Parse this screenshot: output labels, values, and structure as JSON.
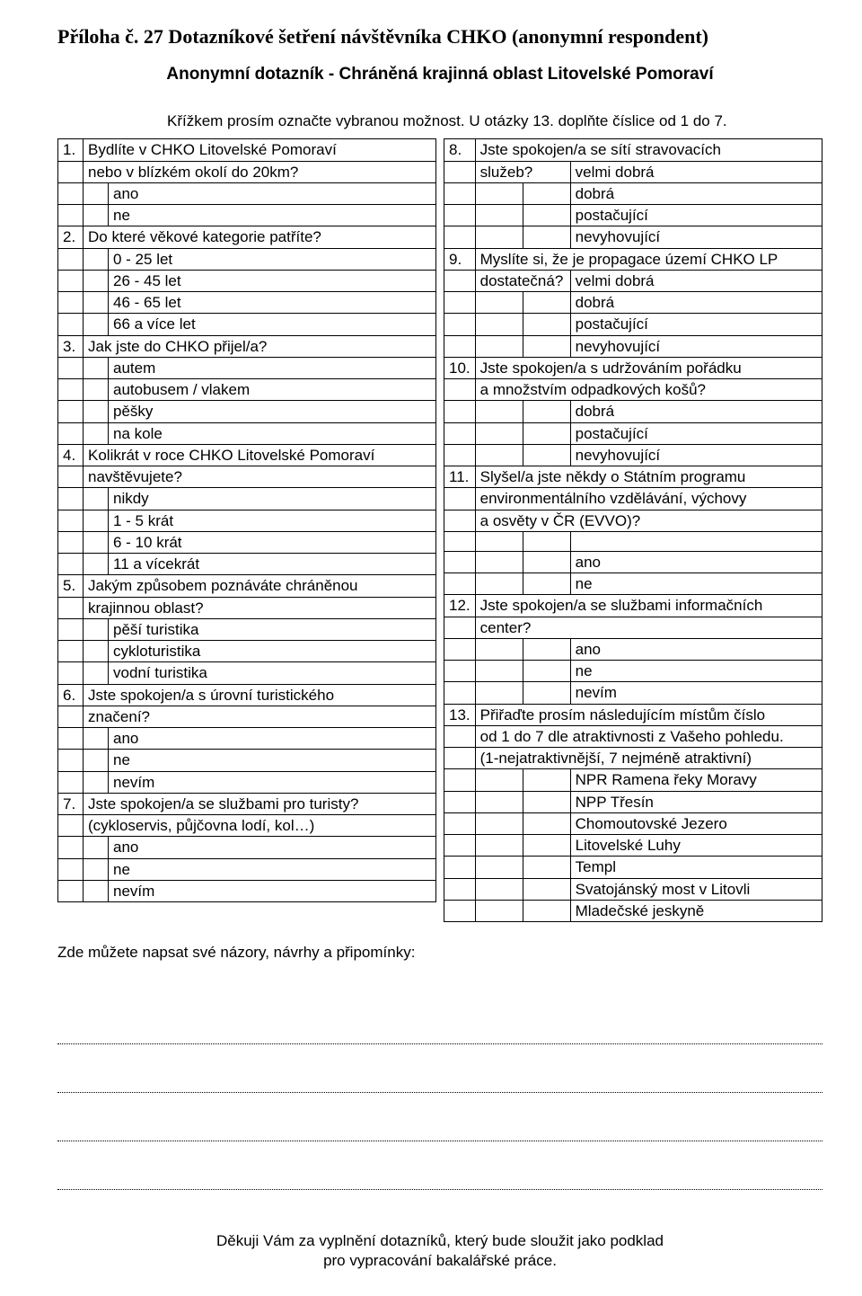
{
  "header": "Příloha č. 27 Dotazníkové šetření návštěvníka CHKO (anonymní respondent)",
  "subtitle": "Anonymní dotazník - Chráněná krajinná oblast Litovelské Pomoraví",
  "intro": "Křížkem prosím označte vybranou možnost. U otázky 13. doplňte číslice od 1 do 7.",
  "left": {
    "q1": {
      "n": "1.",
      "l1": "Bydlíte v CHKO Litovelské Pomoraví",
      "l2": "nebo v blízkém okolí do 20km?",
      "opts": [
        "ano",
        "ne"
      ]
    },
    "q2": {
      "n": "2.",
      "l1": "Do které věkové kategorie patříte?",
      "opts": [
        "0 - 25 let",
        "26 - 45 let",
        "46 - 65 let",
        "66 a více let"
      ]
    },
    "q3": {
      "n": "3.",
      "l1": "Jak jste do CHKO přijel/a?",
      "opts": [
        "autem",
        "autobusem / vlakem",
        "pěšky",
        "na kole"
      ]
    },
    "q4": {
      "n": "4.",
      "l1": "Kolikrát v roce CHKO Litovelské Pomoraví",
      "l2": "navštěvujete?",
      "opts": [
        "nikdy",
        "1 - 5 krát",
        "6 - 10 krát",
        "11 a vícekrát"
      ]
    },
    "q5": {
      "n": "5.",
      "l1": "Jakým způsobem poznáváte chráněnou",
      "l2": "krajinnou oblast?",
      "opts": [
        "pěší turistika",
        "cykloturistika",
        "vodní turistika"
      ]
    },
    "q6": {
      "n": "6.",
      "l1": "Jste spokojen/a s úrovní turistického",
      "l2": "značení?",
      "opts": [
        "ano",
        "ne",
        "nevím"
      ]
    },
    "q7": {
      "n": "7.",
      "l1": "Jste spokojen/a se službami pro turisty?",
      "l2": "(cykloservis, půjčovna lodí, kol…)",
      "opts": [
        "ano",
        "ne",
        "nevím"
      ]
    }
  },
  "right": {
    "q8": {
      "n": "8.",
      "l1": "Jste spokojen/a se sítí stravovacích",
      "l2": "služeb?",
      "r2": "velmi dobrá",
      "opts": [
        "dobrá",
        "postačující",
        "nevyhovující"
      ]
    },
    "q9": {
      "n": "9.",
      "l1": "Myslíte si, že je propagace území CHKO LP",
      "l2": "dostatečná?",
      "r2": "velmi dobrá",
      "opts": [
        "dobrá",
        "postačující",
        "nevyhovující"
      ]
    },
    "q10": {
      "n": "10.",
      "l1": "Jste spokojen/a s udržováním pořádku",
      "l2": "a množstvím odpadkových košů?",
      "opts": [
        "dobrá",
        "postačující",
        "nevyhovující"
      ]
    },
    "q11": {
      "n": "11.",
      "l1": "Slyšel/a jste někdy o Státním programu",
      "l2": "environmentálního vzdělávání, výchovy",
      "l3": "a osvěty v ČR (EVVO)?",
      "opts": [
        "ano",
        "ne"
      ]
    },
    "q12": {
      "n": "12.",
      "l1": "Jste spokojen/a se službami informačních",
      "l2": "center?",
      "opts": [
        "ano",
        "ne",
        "nevím"
      ]
    },
    "q13": {
      "n": "13.",
      "l1": "Přiřaďte prosím následujícím místům číslo",
      "l2": "od 1 do 7 dle atraktivnosti z Vašeho pohledu.",
      "l3": "(1-nejatraktivnější, 7 nejméně atraktivní)",
      "opts": [
        "NPR Ramena řeky Moravy",
        "NPP Třesín",
        "Chomoutovské Jezero",
        "Litovelské Luhy",
        "Templ",
        "Svatojánský most v Litovli",
        "Mladečské jeskyně"
      ]
    }
  },
  "notes_prompt": "Zde můžete napsat své názory, návrhy a připomínky:",
  "footer1": "Děkuji Vám za vyplnění dotazníků, který bude sloužit jako podklad",
  "footer2": "pro vypracování bakalářské práce."
}
